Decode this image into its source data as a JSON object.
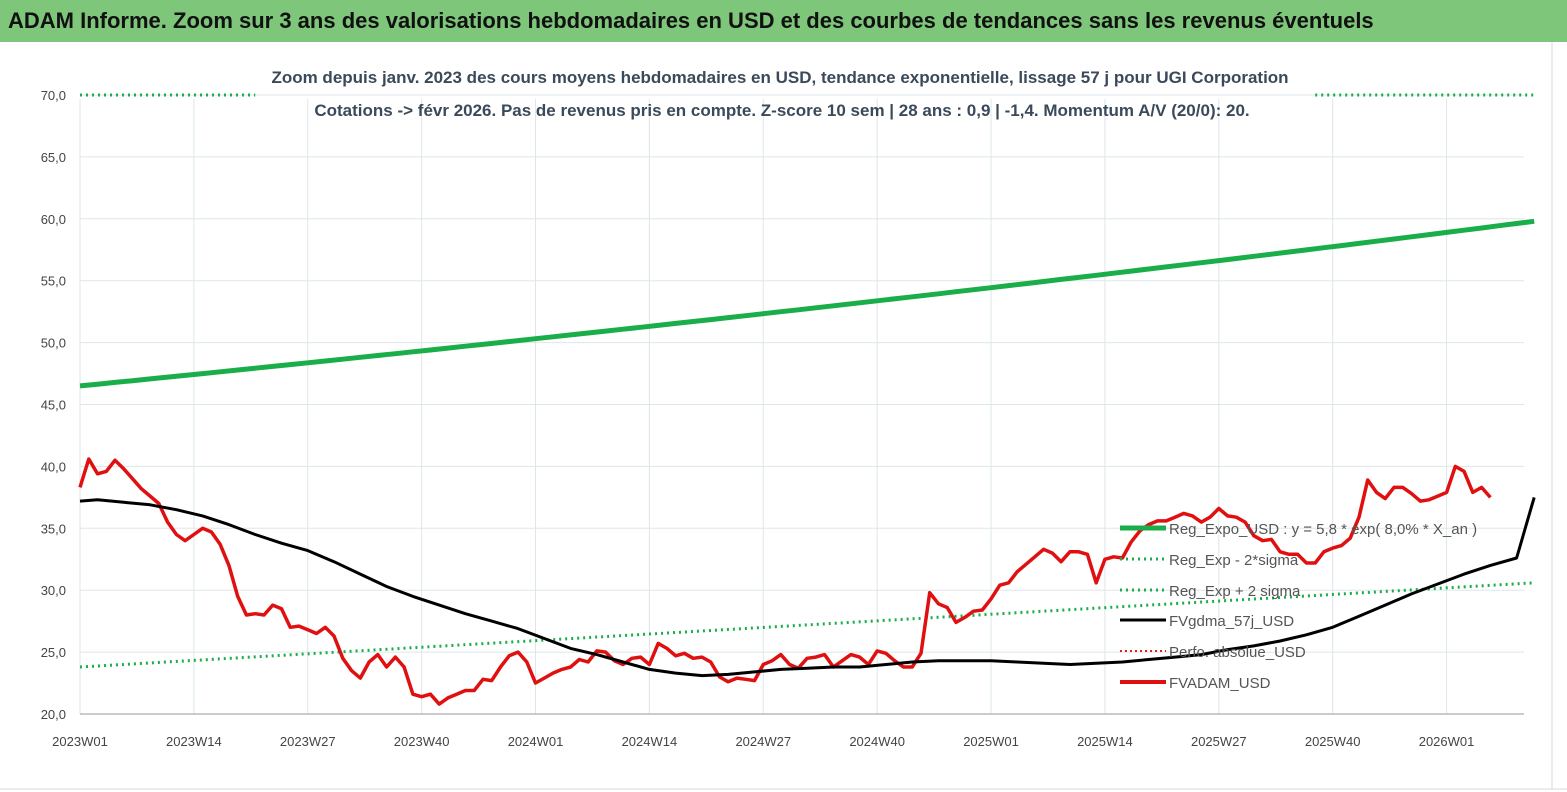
{
  "header": {
    "title": "ADAM Informe. Zoom sur 3 ans des valorisations hebdomadaires en USD et des courbes de tendances sans les revenus éventuels"
  },
  "chart_data": {
    "type": "line",
    "subtitle_lines": [
      "Zoom depuis janv. 2023 des cours moyens hebdomadaires en USD, tendance exponentielle, lissage 57 j pour UGI Corporation",
      "Cotations -> févr 2026.  Pas de revenus pris en compte. Z-score 10 sem  |  28 ans : 0,9  |  -1,4. Momentum A/V (20/0): 20."
    ],
    "x_ticks": [
      "2023W01",
      "2023W14",
      "2023W27",
      "2023W40",
      "2024W01",
      "2024W14",
      "2024W27",
      "2024W40",
      "2025W01",
      "2025W14",
      "2025W27",
      "2025W40",
      "2026W01"
    ],
    "y_ticks": [
      "20,0",
      "25,0",
      "30,0",
      "35,0",
      "40,0",
      "45,0",
      "50,0",
      "55,0",
      "60,0",
      "65,0",
      "70,0"
    ],
    "ylim": [
      20,
      70
    ],
    "grid": "vertical+horizontal",
    "legend_position": "right",
    "colors": {
      "reg_expo": "#1aae4a",
      "sigma": "#1aae4a",
      "fvgdma": "#000000",
      "perfo": "#e02020",
      "fvadam": "#e01010",
      "grid": "#dde6ea",
      "header": "#7dc67a"
    },
    "series": [
      {
        "name": "Reg_Expo_USD : y = 5,8 * exp( 8,0% *  X_an )",
        "style": "solid-thick",
        "x": [
          0,
          166
        ],
        "values": [
          46.5,
          59.8
        ]
      },
      {
        "name": "Reg_Exp - 2*sigma",
        "style": "dotted",
        "x": [
          0,
          20
        ],
        "values": [
          70.0,
          70.0
        ],
        "x2": [
          141,
          166
        ],
        "values2": [
          70.0,
          70.0
        ]
      },
      {
        "name": "Reg_Exp + 2 sigma",
        "style": "dotted",
        "x": [
          0,
          166
        ],
        "values": [
          23.8,
          30.6
        ]
      },
      {
        "name": "FVgdma_57j_USD",
        "style": "solid",
        "x": [
          0,
          2,
          5,
          8,
          11,
          14,
          17,
          20,
          23,
          26,
          29,
          32,
          35,
          38,
          41,
          44,
          47,
          50,
          53,
          56,
          59,
          62,
          65,
          68,
          71,
          74,
          77,
          80,
          83,
          86,
          89,
          92,
          95,
          98,
          101,
          104,
          107,
          110,
          113,
          116,
          119,
          122,
          125,
          128,
          131,
          134,
          137,
          140,
          143,
          146,
          149,
          152,
          155,
          158,
          161,
          164,
          166
        ],
        "values": [
          37.2,
          37.3,
          37.1,
          36.9,
          36.5,
          36.0,
          35.3,
          34.5,
          33.8,
          33.2,
          32.3,
          31.3,
          30.3,
          29.5,
          28.8,
          28.1,
          27.5,
          26.9,
          26.1,
          25.3,
          24.8,
          24.2,
          23.6,
          23.3,
          23.1,
          23.2,
          23.4,
          23.6,
          23.7,
          23.8,
          23.8,
          24.0,
          24.2,
          24.3,
          24.3,
          24.3,
          24.2,
          24.1,
          24.0,
          24.1,
          24.2,
          24.4,
          24.6,
          24.8,
          25.2,
          25.5,
          25.9,
          26.4,
          27.0,
          27.9,
          28.8,
          29.7,
          30.5,
          31.3,
          32.0,
          32.6,
          37.5
        ]
      }
    ],
    "fvadam_values": [
      38.3,
      40.6,
      39.4,
      39.6,
      40.5,
      39.8,
      39.0,
      38.2,
      37.6,
      37.0,
      35.5,
      34.5,
      34.0,
      34.5,
      35.0,
      34.7,
      33.7,
      32.0,
      29.5,
      28.0,
      28.1,
      28.0,
      28.8,
      28.5,
      27.0,
      27.1,
      26.8,
      26.5,
      27.0,
      26.3,
      24.5,
      23.5,
      22.9,
      24.2,
      24.8,
      23.8,
      24.6,
      23.8,
      21.6,
      21.4,
      21.6,
      20.8,
      21.3,
      21.6,
      21.9,
      21.9,
      22.8,
      22.7,
      23.8,
      24.7,
      25.0,
      24.2,
      22.5,
      22.9,
      23.3,
      23.6,
      23.8,
      24.4,
      24.2,
      25.1,
      25.0,
      24.3,
      24.0,
      24.5,
      24.6,
      24.0,
      25.7,
      25.3,
      24.7,
      24.9,
      24.5,
      24.6,
      24.2,
      23.0,
      22.6,
      22.9,
      22.8,
      22.7,
      24.0,
      24.3,
      24.8,
      24.0,
      23.7,
      24.5,
      24.6,
      24.8,
      23.8,
      24.3,
      24.8,
      24.6,
      24.0,
      25.1,
      24.9,
      24.3,
      23.8,
      23.8,
      24.9,
      29.8,
      28.9,
      28.6,
      27.4,
      27.8,
      28.3,
      28.4,
      29.3,
      30.4,
      30.6,
      31.5,
      32.1,
      32.7,
      33.3,
      33.0,
      32.3,
      33.1,
      33.1,
      32.9,
      30.6,
      32.5,
      32.7,
      32.6,
      33.9,
      34.8,
      35.3,
      35.6,
      35.6,
      35.9,
      36.2,
      36.0,
      35.5,
      35.9,
      36.6,
      36.0,
      35.9,
      35.5,
      34.4,
      34.0,
      34.1,
      33.1,
      32.9,
      32.9,
      32.2,
      32.2,
      33.1,
      33.4,
      33.6,
      34.2,
      35.9,
      38.9,
      37.9,
      37.4,
      38.3,
      38.3,
      37.8,
      37.2,
      37.3,
      37.6,
      37.9,
      40.0,
      39.6,
      37.9,
      38.3,
      37.5
    ]
  },
  "legend": {
    "reg_expo": "Reg_Expo_USD : y = 5,8 * exp( 8,0% *  X_an )",
    "minus_sigma": "Reg_Exp - 2*sigma",
    "plus_sigma": "Reg_Exp + 2 sigma",
    "fvgdma": "FVgdma_57j_USD",
    "perfo": "Perfo. absolue_USD",
    "fvadam": "FVADAM_USD"
  }
}
